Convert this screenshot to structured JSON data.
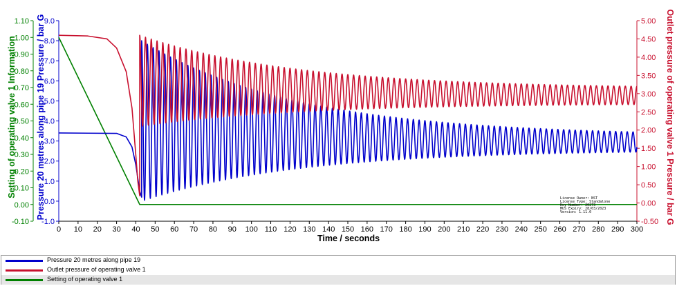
{
  "chart_data": {
    "type": "line",
    "xlabel": "Time / seconds",
    "xlim": [
      0,
      300
    ],
    "x_ticks": [
      "0",
      "10",
      "20",
      "30",
      "40",
      "50",
      "60",
      "70",
      "80",
      "90",
      "100",
      "110",
      "120",
      "130",
      "140",
      "150",
      "160",
      "170",
      "180",
      "190",
      "200",
      "210",
      "220",
      "230",
      "240",
      "250",
      "260",
      "270",
      "280",
      "290",
      "300"
    ],
    "axes": {
      "green": {
        "label": "Setting of operating valve 1 Information",
        "color": "#008000",
        "ylim": [
          -0.1,
          1.1
        ],
        "ticks": [
          "-0.10",
          "0.00",
          "0.10",
          "0.20",
          "0.30",
          "0.40",
          "0.50",
          "0.60",
          "0.70",
          "0.80",
          "0.90",
          "1.00",
          "1.10"
        ]
      },
      "blue": {
        "label": "Pressure 20 metres along pipe 19 Pressure / bar G",
        "color": "#0000cc",
        "ylim": [
          -1.0,
          9.0
        ],
        "ticks": [
          "-1.0",
          "0.0",
          "1.0",
          "2.0",
          "3.0",
          "4.0",
          "5.0",
          "6.0",
          "7.0",
          "8.0",
          "9.0"
        ]
      },
      "red": {
        "label": "Outlet pressure of operating valve 1 Pressure / bar G",
        "color": "#c8102e",
        "ylim": [
          -0.5,
          5.0
        ],
        "ticks": [
          "-0.50",
          "0.00",
          "0.50",
          "1.00",
          "1.50",
          "2.00",
          "2.50",
          "3.00",
          "3.50",
          "4.00",
          "4.50",
          "5.00"
        ]
      }
    },
    "series": [
      {
        "name": "Setting of operating valve 1",
        "axis": "green",
        "color": "#008000",
        "points": [
          [
            0,
            1.0
          ],
          [
            42,
            0.0
          ],
          [
            300,
            0.0
          ]
        ]
      },
      {
        "name": "Pressure 20 metres along pipe 19",
        "axis": "blue",
        "color": "#0000cc",
        "pre_event": [
          [
            0,
            3.4
          ],
          [
            30,
            3.38
          ],
          [
            35,
            3.2
          ],
          [
            38,
            2.7
          ],
          [
            40,
            1.8
          ],
          [
            42,
            0.5
          ],
          [
            43,
            0.2
          ]
        ],
        "oscillation": {
          "start": 43,
          "end": 300,
          "period": 3.0,
          "center_start": 4.0,
          "center_end": 2.95,
          "amplitude_start": 4.0,
          "amplitude_end": 0.5
        }
      },
      {
        "name": "Outlet pressure of operating valve 1",
        "axis": "red",
        "color": "#c8102e",
        "pre_event": [
          [
            0,
            4.6
          ],
          [
            15,
            4.58
          ],
          [
            25,
            4.5
          ],
          [
            30,
            4.25
          ],
          [
            35,
            3.6
          ],
          [
            38,
            2.6
          ],
          [
            40,
            1.3
          ],
          [
            41,
            0.6
          ],
          [
            42,
            0.2
          ]
        ],
        "oscillation": {
          "start": 42,
          "end": 300,
          "period": 3.0,
          "center_start": 3.35,
          "center_end": 2.95,
          "amplitude_start": 1.25,
          "amplitude_end": 0.25
        }
      }
    ],
    "legend": [
      "Pressure 20 metres along pipe 19",
      "Outlet pressure of operating valve 1",
      "Setting of operating valve 1"
    ],
    "legend_position": "bottom",
    "grid": false
  },
  "license": [
    "License Owner: NST",
    "License Type: Standalone",
    "Key Number: 20273",
    "MUS Expiry: 28/03/2023",
    "Version: 1.11.0"
  ]
}
